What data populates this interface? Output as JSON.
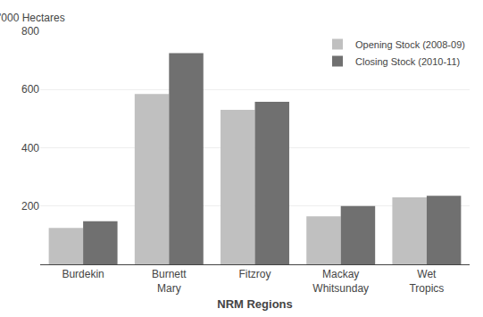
{
  "chart_data": {
    "type": "bar",
    "categories": [
      "Burdekin",
      "Burnett\nMary",
      "Fitzroy",
      "Mackay\nWhitsunday",
      "Wet\nTropics"
    ],
    "series": [
      {
        "name": "Opening Stock (2008-09)",
        "color": "#c0c0c0",
        "values": [
          125,
          585,
          530,
          165,
          230
        ]
      },
      {
        "name": "Closing Stock (2010-11)",
        "color": "#707070",
        "values": [
          148,
          725,
          558,
          200,
          235
        ]
      }
    ],
    "xlabel": "NRM Regions",
    "ylabel": "'000 Hectares",
    "ylim": [
      0,
      800
    ],
    "yticks": [
      200,
      400,
      600,
      800
    ],
    "grid": true,
    "legend": "upper right"
  }
}
